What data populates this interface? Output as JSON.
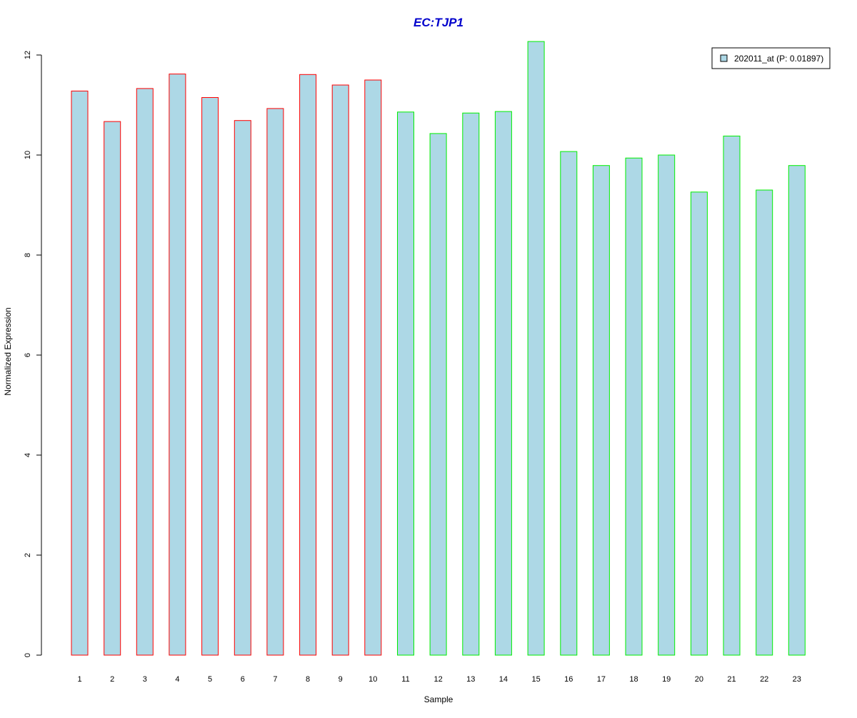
{
  "chart_data": {
    "type": "bar",
    "title": "EC:TJP1",
    "xlabel": "Sample",
    "ylabel": "Normalized Expression",
    "categories": [
      "1",
      "2",
      "3",
      "4",
      "5",
      "6",
      "7",
      "8",
      "9",
      "10",
      "11",
      "12",
      "13",
      "14",
      "15",
      "16",
      "17",
      "18",
      "19",
      "20",
      "21",
      "22",
      "23"
    ],
    "series": [
      {
        "name": "202011_at (P: 0.01897)",
        "values": [
          11.28,
          10.67,
          11.33,
          11.62,
          11.15,
          10.69,
          10.93,
          11.61,
          11.4,
          11.5,
          10.86,
          10.43,
          10.84,
          10.87,
          12.27,
          10.07,
          9.79,
          9.94,
          10.0,
          9.26,
          10.38,
          9.3,
          9.79
        ]
      }
    ],
    "ylim": [
      0,
      12
    ],
    "yticks": [
      "0",
      "2",
      "4",
      "6",
      "8",
      "10",
      "12"
    ],
    "legend_position": "top-right",
    "grid": false,
    "colors": {
      "title": "#0000cc",
      "bar_fill": "#add8e6",
      "group1_border": "#ff0000",
      "group2_border": "#00ee00",
      "axis": "#000000"
    },
    "border_groups": [
      "group1",
      "group1",
      "group1",
      "group1",
      "group1",
      "group1",
      "group1",
      "group1",
      "group1",
      "group1",
      "group2",
      "group2",
      "group2",
      "group2",
      "group2",
      "group2",
      "group2",
      "group2",
      "group2",
      "group2",
      "group2",
      "group2",
      "group2"
    ]
  }
}
